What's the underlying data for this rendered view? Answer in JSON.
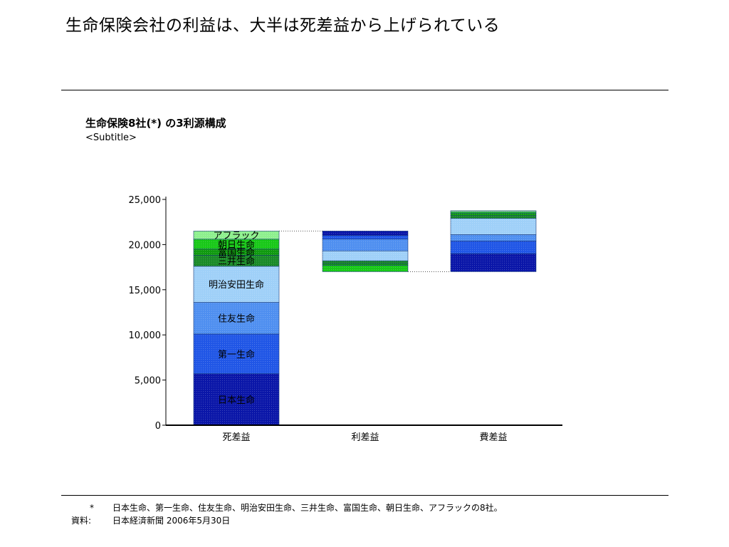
{
  "page": {
    "title": "生命保険会社の利益は、大半は死差益から上げられている"
  },
  "chart_data": {
    "type": "bar",
    "subtype": "waterfall-stacked",
    "title": "生命保険8社(*) の3利源構成",
    "subtitle": "<Subtitle>",
    "xlabel": "",
    "ylabel": "",
    "ylim": [
      0,
      25000
    ],
    "yticks": [
      0,
      5000,
      10000,
      15000,
      20000,
      25000
    ],
    "ytick_labels": [
      "0",
      "5,000",
      "10,000",
      "15,000",
      "20,000",
      "25,000"
    ],
    "grid": false,
    "categories": [
      "死差益",
      "利差益",
      "費差益"
    ],
    "series": [
      {
        "name": "日本生命",
        "color": "#0a16a8",
        "values": [
          5700,
          -500,
          2000
        ]
      },
      {
        "name": "第一生命",
        "color": "#2056e6",
        "values": [
          4400,
          -400,
          1400
        ]
      },
      {
        "name": "住友生命",
        "color": "#4f8ff0",
        "values": [
          3500,
          -1300,
          700
        ]
      },
      {
        "name": "明治安田生命",
        "color": "#9fd0f8",
        "values": [
          4000,
          -1100,
          1800
        ]
      },
      {
        "name": "三井生命",
        "color": "#1a8a28",
        "values": [
          1200,
          -300,
          300
        ]
      },
      {
        "name": "富国生命",
        "color": "#109a10",
        "values": [
          700,
          -200,
          250
        ]
      },
      {
        "name": "朝日生命",
        "color": "#18c818",
        "values": [
          1100,
          -700,
          150
        ]
      },
      {
        "name": "アフラック",
        "color": "#8ef08e",
        "values": [
          900,
          0,
          150
        ]
      }
    ],
    "labels_on_bar": [
      {
        "category": "死差益",
        "series": "日本生命",
        "text": "日本生命"
      },
      {
        "category": "死差益",
        "series": "第一生命",
        "text": "第一生命"
      },
      {
        "category": "死差益",
        "series": "住友生命",
        "text": "住友生命"
      },
      {
        "category": "死差益",
        "series": "明治安田生命",
        "text": "明治安田生命"
      },
      {
        "category": "死差益",
        "series": "三井生命",
        "text": "三井生命"
      },
      {
        "category": "死差益",
        "series": "富国生命",
        "text": "富国生命"
      },
      {
        "category": "死差益",
        "series": "朝日生命",
        "text": "朝日生命"
      },
      {
        "category": "死差益",
        "series": "アフラック",
        "text": "アフラック"
      }
    ]
  },
  "footnotes": {
    "note_mark": "*",
    "note_text": "日本生命、第一生命、住友生命、明治安田生命、三井生命、富国生命、朝日生命、アフラックの8社。",
    "source_label": "資料:",
    "source_text": "日本経済新聞 2006年5月30日"
  }
}
